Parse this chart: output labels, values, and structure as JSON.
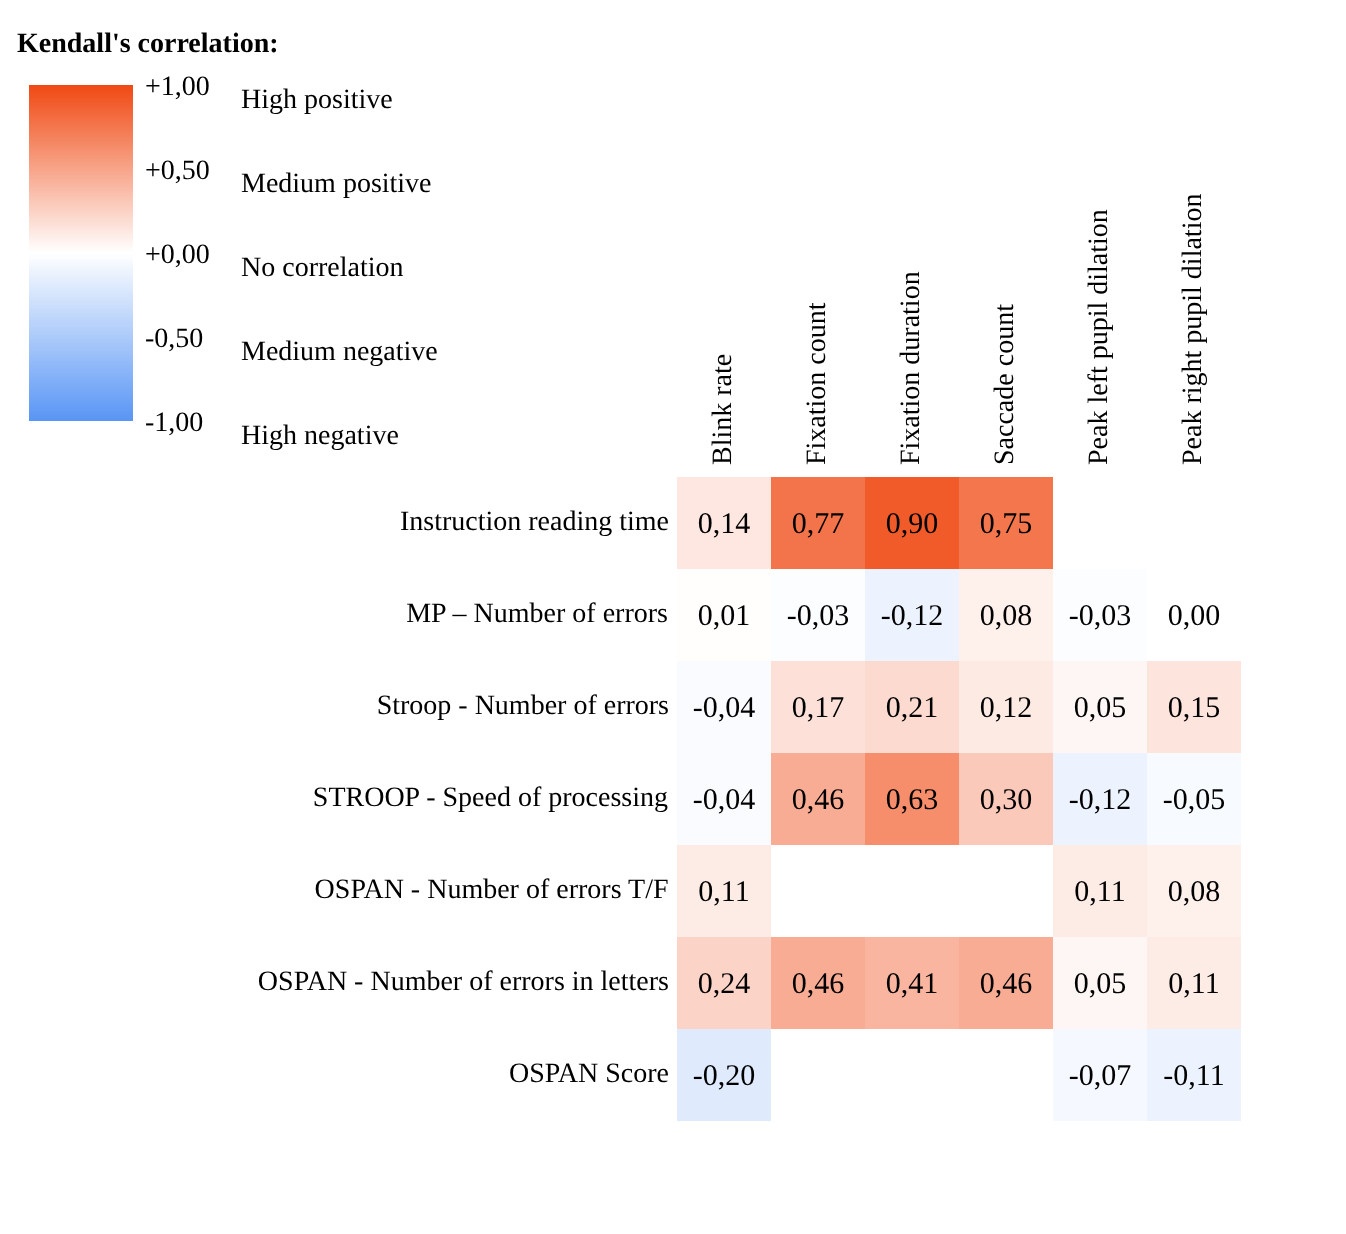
{
  "chart_data": {
    "type": "heatmap",
    "categories": [
      "Blink rate",
      "Fixation  count",
      "Fixation  duration",
      "Saccade count",
      "Peak left pupil  dilation",
      "Peak right pupil dilation"
    ],
    "y_categories": [
      "Instruction reading time",
      "MP – Number of errors",
      "Stroop - Number of errors",
      "STROOP - Speed of processing",
      "OSPAN - Number of errors T/F",
      "OSPAN - Number of errors in letters",
      "OSPAN Score"
    ],
    "cells": [
      [
        0.14,
        0.77,
        0.9,
        0.75,
        null,
        null
      ],
      [
        0.01,
        -0.03,
        -0.12,
        0.08,
        -0.03,
        0.0
      ],
      [
        -0.04,
        0.17,
        0.21,
        0.12,
        0.05,
        0.15
      ],
      [
        -0.04,
        0.46,
        0.63,
        0.3,
        -0.12,
        -0.05
      ],
      [
        0.11,
        null,
        null,
        null,
        0.11,
        0.08
      ],
      [
        0.24,
        0.46,
        0.41,
        0.46,
        0.05,
        0.11
      ],
      [
        -0.2,
        null,
        null,
        null,
        -0.07,
        -0.11
      ]
    ],
    "cell_labels": [
      [
        "0,14",
        "0,77",
        "0,90",
        "0,75",
        null,
        null
      ],
      [
        "0,01",
        "-0,03",
        "-0,12",
        "0,08",
        "-0,03",
        "0,00"
      ],
      [
        "-0,04",
        "0,17",
        "0,21",
        "0,12",
        "0,05",
        "0,15"
      ],
      [
        "-0,04",
        "0,46",
        "0,63",
        "0,30",
        "-0,12",
        "-0,05"
      ],
      [
        "0,11",
        null,
        null,
        null,
        "0,11",
        "0,08"
      ],
      [
        "0,24",
        "0,46",
        "0,41",
        "0,46",
        "0,05",
        "0,11"
      ],
      [
        "-0,20",
        null,
        null,
        null,
        "-0,07",
        "-0,11"
      ]
    ],
    "clabel": "Kendall's correlation:",
    "clim": [
      -1,
      1
    ],
    "cticks": [
      {
        "value": 1,
        "label": "+1,00"
      },
      {
        "value": 0.5,
        "label": "+0,50"
      },
      {
        "value": 0,
        "label": "+0,00"
      },
      {
        "value": -0.5,
        "label": "-0,50"
      },
      {
        "value": -1,
        "label": "-1,00"
      }
    ],
    "annotations": [
      "High positive",
      "Medium positive",
      "No correlation",
      "Medium negative",
      "High  negative"
    ],
    "colors": [
      "#5a96f5",
      "#ffffff",
      "#f04a14"
    ]
  }
}
